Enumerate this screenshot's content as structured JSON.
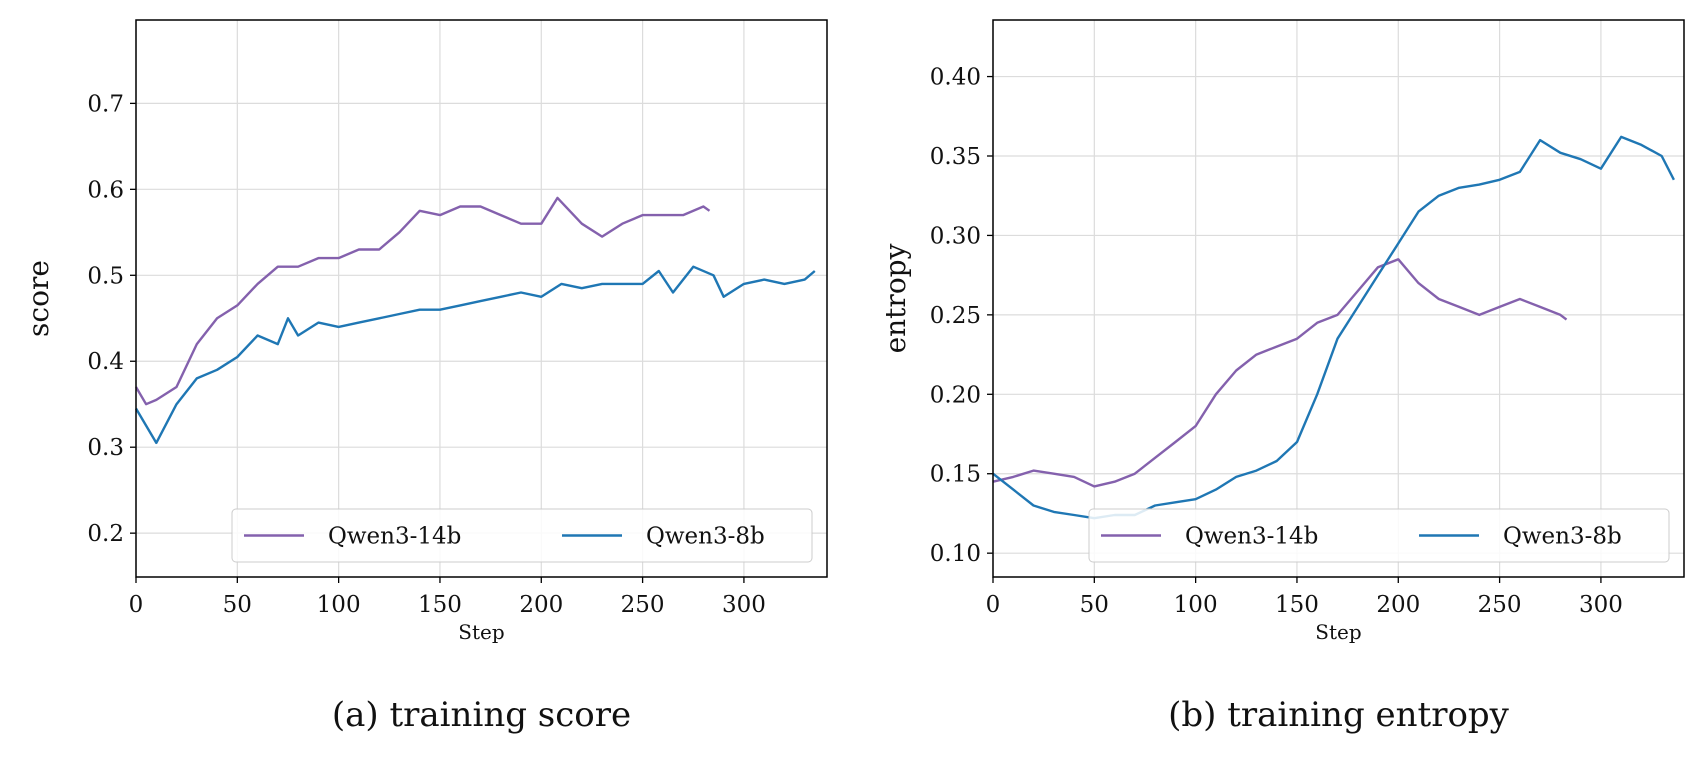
{
  "chart_data": [
    {
      "type": "line",
      "caption": "(a) training score",
      "ylabel": "score",
      "xlabel": "Step",
      "xlim": [
        0,
        341
      ],
      "xticks": [
        0,
        50,
        100,
        150,
        200,
        250,
        300
      ],
      "ylim": [
        0.149,
        0.797
      ],
      "yticks": [
        0.2,
        0.3,
        0.4,
        0.5,
        0.6,
        0.7
      ],
      "grid": true,
      "legend": "lower right",
      "series": [
        {
          "name": "Qwen3-14b",
          "color": "#8461ad",
          "x": [
            0,
            5,
            10,
            20,
            30,
            40,
            50,
            60,
            70,
            80,
            90,
            100,
            110,
            120,
            130,
            140,
            150,
            160,
            170,
            180,
            190,
            200,
            208,
            220,
            230,
            240,
            250,
            260,
            270,
            280,
            283
          ],
          "values": [
            0.37,
            0.35,
            0.355,
            0.37,
            0.42,
            0.45,
            0.465,
            0.49,
            0.51,
            0.51,
            0.52,
            0.52,
            0.53,
            0.53,
            0.55,
            0.575,
            0.57,
            0.58,
            0.58,
            0.57,
            0.56,
            0.56,
            0.59,
            0.56,
            0.545,
            0.56,
            0.57,
            0.57,
            0.57,
            0.58,
            0.575
          ]
        },
        {
          "name": "Qwen3-8b",
          "color": "#1f77b4",
          "x": [
            0,
            10,
            20,
            30,
            40,
            50,
            60,
            70,
            75,
            80,
            90,
            100,
            110,
            120,
            130,
            140,
            150,
            160,
            170,
            180,
            190,
            200,
            210,
            220,
            230,
            240,
            250,
            258,
            265,
            275,
            285,
            290,
            300,
            310,
            320,
            330,
            335
          ],
          "values": [
            0.345,
            0.305,
            0.35,
            0.38,
            0.39,
            0.405,
            0.43,
            0.42,
            0.45,
            0.43,
            0.445,
            0.44,
            0.445,
            0.45,
            0.455,
            0.46,
            0.46,
            0.465,
            0.47,
            0.475,
            0.48,
            0.475,
            0.49,
            0.485,
            0.49,
            0.49,
            0.49,
            0.505,
            0.48,
            0.51,
            0.5,
            0.475,
            0.49,
            0.495,
            0.49,
            0.495,
            0.505
          ]
        }
      ]
    },
    {
      "type": "line",
      "caption": "(b) training entropy",
      "ylabel": "entropy",
      "xlabel": "Step",
      "xlim": [
        0,
        341
      ],
      "xticks": [
        0,
        50,
        100,
        150,
        200,
        250,
        300
      ],
      "ylim": [
        0.085,
        0.4356
      ],
      "yticks": [
        {
          "value": 0.1,
          "label": "0.10"
        },
        0.15,
        {
          "value": 0.2,
          "label": "0.20"
        },
        0.25,
        {
          "value": 0.3,
          "label": "0.30"
        },
        0.35,
        {
          "value": 0.4,
          "label": "0.40"
        }
      ],
      "grid": true,
      "legend": "lower right",
      "series": [
        {
          "name": "Qwen3-14b",
          "color": "#8461ad",
          "x": [
            0,
            10,
            20,
            30,
            40,
            50,
            60,
            70,
            80,
            90,
            100,
            110,
            120,
            130,
            140,
            150,
            160,
            170,
            180,
            190,
            200,
            210,
            220,
            230,
            240,
            250,
            260,
            270,
            280,
            283
          ],
          "values": [
            0.145,
            0.148,
            0.152,
            0.15,
            0.148,
            0.142,
            0.145,
            0.15,
            0.16,
            0.17,
            0.18,
            0.2,
            0.215,
            0.225,
            0.23,
            0.235,
            0.245,
            0.25,
            0.265,
            0.28,
            0.285,
            0.27,
            0.26,
            0.255,
            0.25,
            0.255,
            0.26,
            0.255,
            0.25,
            0.247
          ]
        },
        {
          "name": "Qwen3-8b",
          "color": "#1f77b4",
          "x": [
            0,
            10,
            20,
            30,
            40,
            50,
            60,
            70,
            80,
            90,
            100,
            110,
            120,
            130,
            140,
            150,
            160,
            170,
            180,
            190,
            200,
            210,
            220,
            230,
            240,
            250,
            260,
            270,
            280,
            290,
            300,
            310,
            320,
            330,
            336
          ],
          "values": [
            0.15,
            0.14,
            0.13,
            0.126,
            0.124,
            0.122,
            0.124,
            0.124,
            0.13,
            0.132,
            0.134,
            0.14,
            0.148,
            0.152,
            0.158,
            0.17,
            0.2,
            0.235,
            0.255,
            0.275,
            0.295,
            0.315,
            0.325,
            0.33,
            0.332,
            0.335,
            0.34,
            0.36,
            0.352,
            0.348,
            0.342,
            0.362,
            0.357,
            0.35,
            0.335
          ]
        }
      ]
    }
  ]
}
